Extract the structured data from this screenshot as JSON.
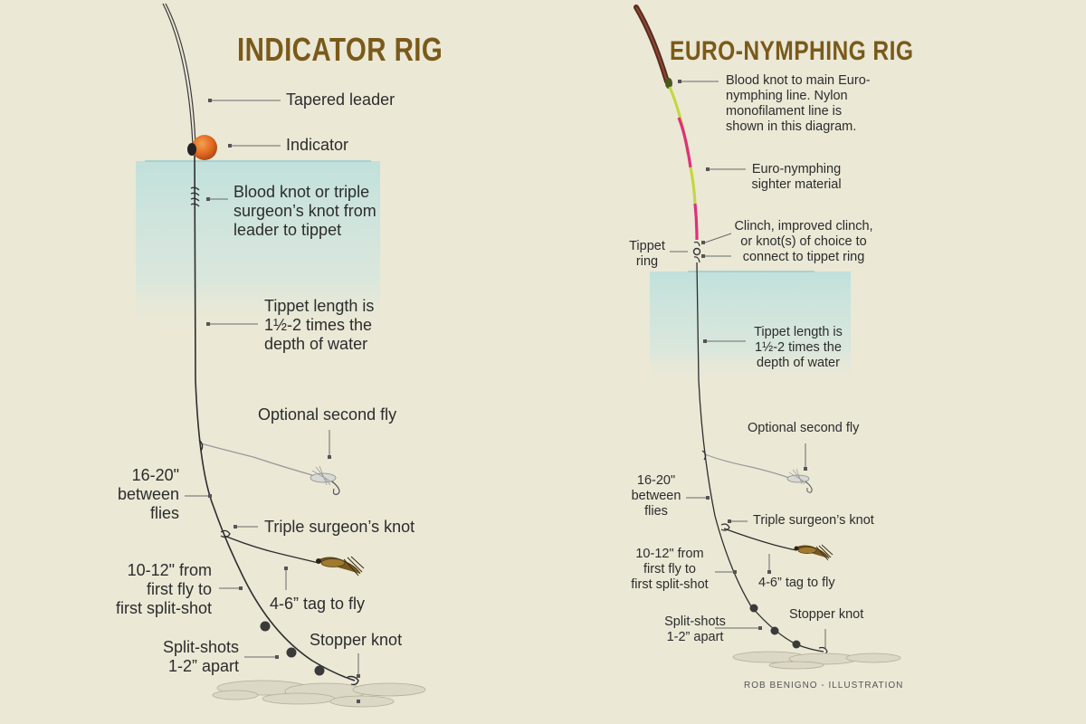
{
  "indicator_rig": {
    "title": "INDICATOR RIG",
    "labels": {
      "tapered_leader": "Tapered leader",
      "indicator": "Indicator",
      "blood_knot": "Blood knot or triple\nsurgeon’s knot from\nleader to tippet",
      "tippet_length": "Tippet length is\n1½-2 times the\ndepth of water",
      "optional_second_fly": "Optional second fly",
      "between_flies": "16-20\"\nbetween\nflies",
      "triple_surgeons_knot": "Triple surgeon’s knot",
      "first_split_shot": "10-12\" from\nfirst fly to\nfirst split-shot",
      "tag_to_fly": "4-6” tag to fly",
      "split_shots": "Split-shots\n1-2” apart",
      "stopper_knot": "Stopper knot"
    }
  },
  "euro_rig": {
    "title": "EURO-NYMPHING RIG",
    "labels": {
      "blood_knot": "Blood knot to main Euro-\nnymphing line. Nylon\nmonofilament line is\nshown in this diagram.",
      "sighter": "Euro-nymphing\nsighter material",
      "clinch": "Clinch, improved clinch,\nor knot(s) of choice to\nconnect to tippet ring",
      "tippet_ring": "Tippet\nring",
      "tippet_length": "Tippet length is\n1½-2 times the\ndepth of water",
      "optional_second_fly": "Optional second fly",
      "between_flies": "16-20\"\nbetween\nflies",
      "triple_surgeons_knot": "Triple surgeon’s knot",
      "first_split_shot": "10-12\" from\nfirst fly to\nfirst split-shot",
      "tag_to_fly": "4-6” tag to fly",
      "split_shots": "Split-shots\n1-2” apart",
      "stopper_knot": "Stopper knot"
    }
  },
  "credit": "ROB BENIGNO - ILLUSTRATION",
  "colors": {
    "background": "#ebe8d6",
    "title": "#7a5a1a",
    "water": "#bfe0dc",
    "indicator": "#e0661e",
    "sighter_pink": "#e0307a",
    "sighter_green": "#c4d83a",
    "fly_line": "#5a2a1e",
    "split_shot": "#3a3a3a"
  }
}
